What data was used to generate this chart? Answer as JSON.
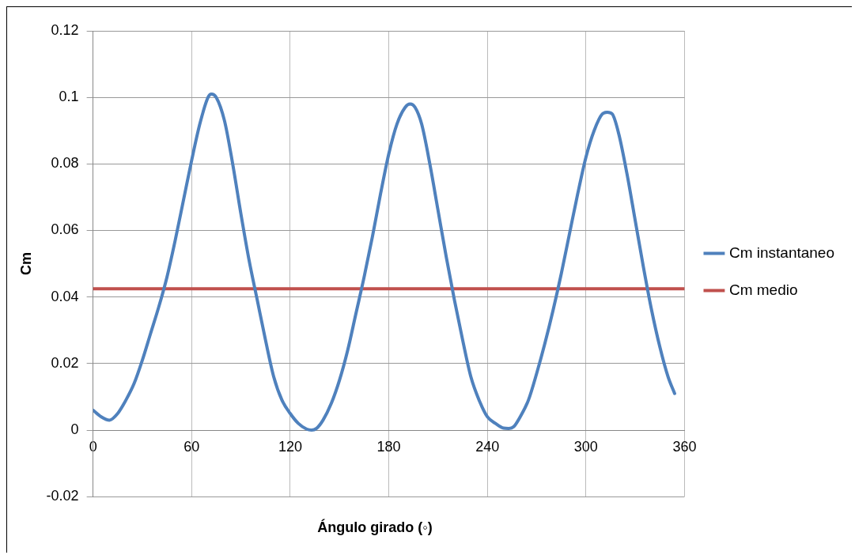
{
  "chart_data": {
    "type": "line",
    "xlabel": "Ángulo girado (◦)",
    "ylabel": "Cm",
    "xlim": [
      0,
      360
    ],
    "xticks": [
      0,
      60,
      120,
      180,
      240,
      300,
      360
    ],
    "ylim": [
      -0.02,
      0.12
    ],
    "yticks": [
      -0.02,
      0,
      0.02,
      0.04,
      0.06,
      0.08,
      0.1,
      0.12
    ],
    "grid": true,
    "legend": "right",
    "marker": "none",
    "line_style": "solid",
    "series": [
      {
        "name": "Cm instantaneo",
        "color": "#4f81bd",
        "x": [
          0,
          5,
          10,
          15,
          20,
          25,
          30,
          35,
          40,
          45,
          50,
          55,
          60,
          65,
          70,
          72,
          75,
          80,
          85,
          90,
          95,
          100,
          105,
          110,
          115,
          120,
          125,
          130,
          133,
          136,
          140,
          145,
          150,
          155,
          160,
          165,
          170,
          175,
          180,
          185,
          190,
          193,
          196,
          200,
          205,
          210,
          215,
          220,
          225,
          230,
          235,
          240,
          245,
          250,
          253,
          256,
          260,
          265,
          270,
          275,
          280,
          285,
          290,
          295,
          300,
          305,
          310,
          313,
          316,
          320,
          325,
          330,
          335,
          340,
          345,
          350,
          354
        ],
        "values": [
          0.006,
          0.004,
          0.003,
          0.005,
          0.009,
          0.014,
          0.021,
          0.029,
          0.037,
          0.046,
          0.057,
          0.069,
          0.081,
          0.092,
          0.1,
          0.101,
          0.1,
          0.093,
          0.08,
          0.065,
          0.051,
          0.039,
          0.027,
          0.016,
          0.009,
          0.005,
          0.002,
          0.0003,
          0,
          0.0005,
          0.003,
          0.008,
          0.015,
          0.024,
          0.035,
          0.046,
          0.058,
          0.071,
          0.083,
          0.092,
          0.097,
          0.098,
          0.097,
          0.092,
          0.08,
          0.066,
          0.052,
          0.039,
          0.027,
          0.016,
          0.009,
          0.004,
          0.002,
          0.0006,
          0.0005,
          0.001,
          0.004,
          0.009,
          0.017,
          0.026,
          0.036,
          0.047,
          0.059,
          0.071,
          0.082,
          0.09,
          0.095,
          0.0955,
          0.095,
          0.089,
          0.077,
          0.063,
          0.049,
          0.036,
          0.025,
          0.016,
          0.011
        ]
      },
      {
        "name": "Cm medio",
        "color": "#c0504d",
        "x": [
          0,
          360
        ],
        "values": [
          0.0425,
          0.0425
        ]
      }
    ]
  }
}
